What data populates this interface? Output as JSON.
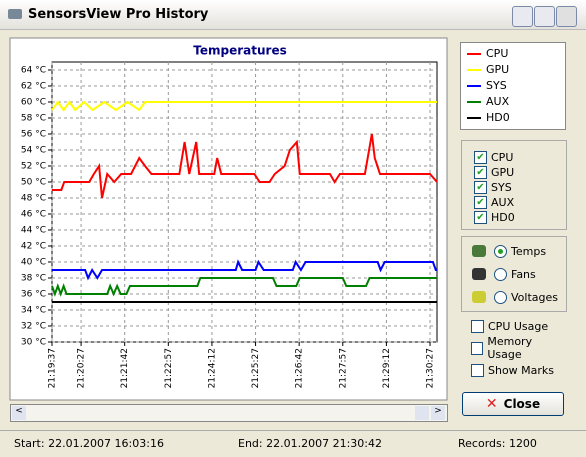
{
  "window": {
    "title": "SensorsView Pro History",
    "checks": [
      "CPU Usage",
      "Memory Usage",
      "Show Marks"
    ],
    "modes": [
      "Temps",
      "Fans",
      "Voltages"
    ],
    "close": "Close",
    "status": {
      "start": "Start: 22.01.2007 16:03:16",
      "end": "End: 22.01.2007 21:30:42",
      "records": "Records: 1200"
    }
  },
  "chart_data": {
    "type": "line",
    "title": "Temperatures",
    "grid": true,
    "xlim": [
      0,
      662
    ],
    "xticks": [
      {
        "value": 0,
        "label": "21:19:37"
      },
      {
        "value": 50,
        "label": "21:20:27"
      },
      {
        "value": 125,
        "label": "21:21:42"
      },
      {
        "value": 200,
        "label": "21:22:57"
      },
      {
        "value": 275,
        "label": "21:24:12"
      },
      {
        "value": 350,
        "label": "21:25:27"
      },
      {
        "value": 425,
        "label": "21:26:42"
      },
      {
        "value": 500,
        "label": "21:27:57"
      },
      {
        "value": 575,
        "label": "21:29:12"
      },
      {
        "value": 650,
        "label": "21:30:27"
      }
    ],
    "ylim": [
      30,
      65
    ],
    "yticks": [
      {
        "value": 30,
        "label": "30 °C"
      },
      {
        "value": 32,
        "label": "32 °C"
      },
      {
        "value": 34,
        "label": "34 °C"
      },
      {
        "value": 36,
        "label": "36 °C"
      },
      {
        "value": 38,
        "label": "38 °C"
      },
      {
        "value": 40,
        "label": "40 °C"
      },
      {
        "value": 42,
        "label": "42 °C"
      },
      {
        "value": 44,
        "label": "44 °C"
      },
      {
        "value": 46,
        "label": "46 °C"
      },
      {
        "value": 48,
        "label": "48 °C"
      },
      {
        "value": 50,
        "label": "50 °C"
      },
      {
        "value": 52,
        "label": "52 °C"
      },
      {
        "value": 54,
        "label": "54 °C"
      },
      {
        "value": 56,
        "label": "56 °C"
      },
      {
        "value": 58,
        "label": "58 °C"
      },
      {
        "value": 60,
        "label": "60 °C"
      },
      {
        "value": 62,
        "label": "62 °C"
      },
      {
        "value": 64,
        "label": "64 °C"
      }
    ],
    "series": [
      {
        "name": "CPU",
        "color": "#ff0000",
        "x": [
          0,
          16,
          21,
          64,
          72,
          81,
          86,
          95,
          107,
          119,
          136,
          150,
          160,
          171,
          219,
          228,
          236,
          248,
          253,
          279,
          284,
          291,
          348,
          357,
          374,
          383,
          400,
          409,
          421,
          426,
          478,
          486,
          495,
          538,
          550,
          555,
          564,
          650,
          662
        ],
        "values": [
          49,
          49,
          50,
          50,
          51,
          52,
          48,
          51,
          50,
          51,
          51,
          53,
          52,
          51,
          51,
          55,
          51,
          55,
          51,
          51,
          53,
          51,
          51,
          50,
          50,
          51,
          52,
          54,
          55,
          51,
          51,
          50,
          51,
          51,
          56,
          53,
          51,
          51,
          50
        ]
      },
      {
        "name": "GPU",
        "color": "#ffff00",
        "x": [
          0,
          10,
          20,
          30,
          40,
          55,
          70,
          90,
          110,
          130,
          150,
          160,
          662
        ],
        "values": [
          59,
          60,
          59,
          60,
          59,
          60,
          59,
          60,
          59,
          60,
          59,
          60,
          60
        ]
      },
      {
        "name": "SYS",
        "color": "#0000ff",
        "x": [
          0,
          57,
          62,
          69,
          78,
          86,
          316,
          320,
          327,
          350,
          355,
          364,
          414,
          419,
          428,
          436,
          560,
          565,
          572,
          655,
          660,
          662
        ],
        "values": [
          39,
          39,
          38,
          39,
          38,
          39,
          39,
          40,
          39,
          39,
          40,
          39,
          39,
          40,
          39,
          40,
          40,
          39,
          40,
          40,
          39,
          39
        ]
      },
      {
        "name": "AUX",
        "color": "#008000",
        "x": [
          0,
          5,
          10,
          15,
          20,
          25,
          95,
          100,
          106,
          112,
          118,
          128,
          134,
          250,
          255,
          380,
          386,
          420,
          426,
          500,
          506,
          540,
          546,
          662
        ],
        "values": [
          37,
          36,
          37,
          36,
          37,
          36,
          36,
          37,
          36,
          37,
          36,
          36,
          37,
          37,
          38,
          38,
          37,
          37,
          38,
          38,
          37,
          37,
          38,
          38
        ]
      },
      {
        "name": "HD0",
        "color": "#000000",
        "x": [
          0,
          662
        ],
        "values": [
          35,
          35
        ]
      }
    ]
  }
}
